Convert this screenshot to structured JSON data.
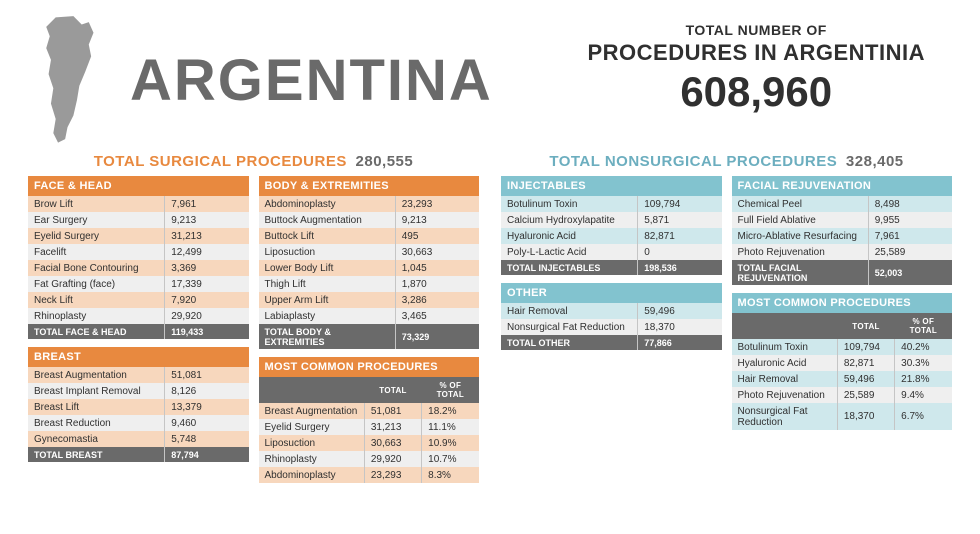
{
  "header": {
    "country": "ARGENTINA",
    "total_label1": "TOTAL NUMBER OF",
    "total_label2": "PROCEDURES IN ARGENTINIA",
    "total_number": "608,960"
  },
  "surgical": {
    "title": "TOTAL SURGICAL PROCEDURES",
    "total": "280,555",
    "color": "#e8893f",
    "face_head": {
      "title": "FACE & HEAD",
      "rows": [
        [
          "Brow Lift",
          "7,961"
        ],
        [
          "Ear Surgery",
          "9,213"
        ],
        [
          "Eyelid Surgery",
          "31,213"
        ],
        [
          "Facelift",
          "12,499"
        ],
        [
          "Facial Bone Contouring",
          "3,369"
        ],
        [
          "Fat Grafting (face)",
          "17,339"
        ],
        [
          "Neck Lift",
          "7,920"
        ],
        [
          "Rhinoplasty",
          "29,920"
        ]
      ],
      "total_label": "TOTAL FACE & HEAD",
      "total_value": "119,433"
    },
    "breast": {
      "title": "BREAST",
      "rows": [
        [
          "Breast Augmentation",
          "51,081"
        ],
        [
          "Breast Implant Removal",
          "8,126"
        ],
        [
          "Breast Lift",
          "13,379"
        ],
        [
          "Breast Reduction",
          "9,460"
        ],
        [
          "Gynecomastia",
          "5,748"
        ]
      ],
      "total_label": "TOTAL BREAST",
      "total_value": "87,794"
    },
    "body": {
      "title": "BODY & EXTREMITIES",
      "rows": [
        [
          "Abdominoplasty",
          "23,293"
        ],
        [
          "Buttock Augmentation",
          "9,213"
        ],
        [
          "Buttock Lift",
          "495"
        ],
        [
          "Liposuction",
          "30,663"
        ],
        [
          "Lower Body Lift",
          "1,045"
        ],
        [
          "Thigh Lift",
          "1,870"
        ],
        [
          "Upper Arm Lift",
          "3,286"
        ],
        [
          "Labiaplasty",
          "3,465"
        ]
      ],
      "total_label": "TOTAL BODY & EXTREMITIES",
      "total_value": "73,329"
    },
    "most_common": {
      "title": "MOST COMMON PROCEDURES",
      "col1": "TOTAL",
      "col2": "% OF TOTAL",
      "rows": [
        [
          "Breast Augmentation",
          "51,081",
          "18.2%"
        ],
        [
          "Eyelid Surgery",
          "31,213",
          "11.1%"
        ],
        [
          "Liposuction",
          "30,663",
          "10.9%"
        ],
        [
          "Rhinoplasty",
          "29,920",
          "10.7%"
        ],
        [
          "Abdominoplasty",
          "23,293",
          "8.3%"
        ]
      ]
    }
  },
  "nonsurgical": {
    "title": "TOTAL NONSURGICAL PROCEDURES",
    "total": "328,405",
    "color": "#6caebf",
    "injectables": {
      "title": "INJECTABLES",
      "rows": [
        [
          "Botulinum Toxin",
          "109,794"
        ],
        [
          "Calcium Hydroxylapatite",
          "5,871"
        ],
        [
          "Hyaluronic Acid",
          "82,871"
        ],
        [
          "Poly-L-Lactic Acid",
          "0"
        ]
      ],
      "total_label": "TOTAL INJECTABLES",
      "total_value": "198,536"
    },
    "other": {
      "title": "OTHER",
      "rows": [
        [
          "Hair Removal",
          "59,496"
        ],
        [
          "Nonsurgical Fat Reduction",
          "18,370"
        ]
      ],
      "total_label": "TOTAL OTHER",
      "total_value": "77,866"
    },
    "facial": {
      "title": "FACIAL REJUVENATION",
      "rows": [
        [
          "Chemical Peel",
          "8,498"
        ],
        [
          "Full Field Ablative",
          "9,955"
        ],
        [
          "Micro-Ablative Resurfacing",
          "7,961"
        ],
        [
          "Photo Rejuvenation",
          "25,589"
        ]
      ],
      "total_label": "TOTAL FACIAL REJUVENATION",
      "total_value": "52,003"
    },
    "most_common": {
      "title": "MOST COMMON PROCEDURES",
      "col1": "TOTAL",
      "col2": "% OF TOTAL",
      "rows": [
        [
          "Botulinum Toxin",
          "109,794",
          "40.2%"
        ],
        [
          "Hyaluronic Acid",
          "82,871",
          "30.3%"
        ],
        [
          "Hair Removal",
          "59,496",
          "21.8%"
        ],
        [
          "Photo Rejuvenation",
          "25,589",
          "9.4%"
        ],
        [
          "Nonsurgical Fat Reduction",
          "18,370",
          "6.7%"
        ]
      ]
    }
  }
}
